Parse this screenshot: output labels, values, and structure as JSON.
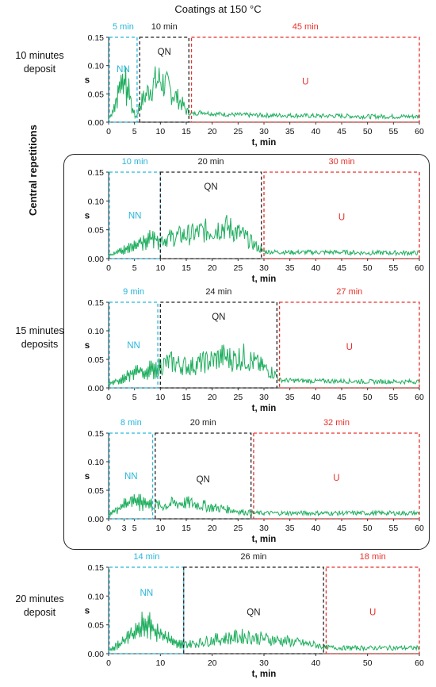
{
  "title": "Coatings at 150 °C",
  "side_labels": {
    "ten_min": [
      "10 minutes",
      "deposit"
    ],
    "central": "Central repetitions",
    "fifteen_min": [
      "15 minutes",
      "deposits"
    ],
    "twenty_min": [
      "20 minutes",
      "deposit"
    ]
  },
  "colors": {
    "NN": "#29b6d9",
    "QN": "#222222",
    "U": "#e8302a",
    "signal": "#1fae5e"
  },
  "chart_data": [
    {
      "type": "line",
      "xlabel": "t, min",
      "ylabel": "s",
      "xlim": [
        0,
        60
      ],
      "ylim": [
        0,
        0.15
      ],
      "xticks": [
        0,
        5,
        10,
        15,
        20,
        25,
        30,
        35,
        40,
        45,
        50,
        55,
        60
      ],
      "yticks": [
        "0.00",
        "0.05",
        "0.10",
        "0.15"
      ],
      "regions": [
        {
          "label": "NN",
          "duration": "5 min",
          "start": 0,
          "end": 5.5
        },
        {
          "label": "QN",
          "duration": "10 min",
          "start": 6,
          "end": 15.5
        },
        {
          "label": "U",
          "duration": "45 min",
          "start": 16,
          "end": 60
        }
      ],
      "series": [
        {
          "x": [
            0,
            1,
            2,
            3,
            3.8,
            4.5,
            5.2,
            6,
            7,
            8,
            9,
            10,
            11,
            12,
            13,
            14,
            15,
            16,
            18,
            20,
            25,
            30,
            35,
            40,
            45,
            50,
            55,
            60
          ],
          "y": [
            0.005,
            0.02,
            0.055,
            0.07,
            0.055,
            0.025,
            0.008,
            0.03,
            0.045,
            0.06,
            0.07,
            0.075,
            0.065,
            0.055,
            0.045,
            0.035,
            0.02,
            0.014,
            0.018,
            0.015,
            0.013,
            0.012,
            0.012,
            0.011,
            0.011,
            0.01,
            0.01,
            0.01
          ]
        }
      ]
    },
    {
      "type": "line",
      "xlabel": "t, min",
      "ylabel": "s",
      "xlim": [
        0,
        60
      ],
      "ylim": [
        0,
        0.15
      ],
      "xticks": [
        0,
        5,
        10,
        15,
        20,
        25,
        30,
        35,
        40,
        45,
        50,
        55,
        60
      ],
      "yticks": [
        "0.00",
        "0.05",
        "0.10",
        "0.15"
      ],
      "regions": [
        {
          "label": "NN",
          "duration": "10 min",
          "start": 0,
          "end": 10
        },
        {
          "label": "QN",
          "duration": "20 min",
          "start": 10,
          "end": 29.5
        },
        {
          "label": "U",
          "duration": "30 min",
          "start": 30,
          "end": 60
        }
      ],
      "series": [
        {
          "x": [
            0,
            2,
            4,
            6,
            8,
            10,
            12,
            14,
            16,
            18,
            20,
            22,
            24,
            26,
            28,
            29.5,
            30,
            35,
            40,
            45,
            50,
            55,
            60
          ],
          "y": [
            0.005,
            0.012,
            0.02,
            0.028,
            0.034,
            0.034,
            0.036,
            0.04,
            0.042,
            0.047,
            0.05,
            0.056,
            0.05,
            0.04,
            0.025,
            0.015,
            0.012,
            0.011,
            0.011,
            0.011,
            0.01,
            0.01,
            0.01
          ]
        }
      ]
    },
    {
      "type": "line",
      "xlabel": "t, min",
      "ylabel": "s",
      "xlim": [
        0,
        60
      ],
      "ylim": [
        0,
        0.15
      ],
      "xticks": [
        0,
        5,
        10,
        15,
        20,
        25,
        30,
        35,
        40,
        45,
        50,
        55,
        60
      ],
      "yticks": [
        "0.00",
        "0.05",
        "0.10",
        "0.15"
      ],
      "regions": [
        {
          "label": "NN",
          "duration": "9 min",
          "start": 0,
          "end": 9.5
        },
        {
          "label": "QN",
          "duration": "24 min",
          "start": 10,
          "end": 32.5
        },
        {
          "label": "U",
          "duration": "27 min",
          "start": 33,
          "end": 60
        }
      ],
      "series": [
        {
          "x": [
            0,
            2,
            4,
            6,
            8,
            9.5,
            10,
            12,
            14,
            16,
            18,
            20,
            22,
            24,
            26,
            28,
            30,
            32,
            33,
            35,
            40,
            45,
            50,
            55,
            60
          ],
          "y": [
            0.008,
            0.012,
            0.022,
            0.028,
            0.032,
            0.035,
            0.04,
            0.045,
            0.04,
            0.038,
            0.044,
            0.048,
            0.055,
            0.05,
            0.055,
            0.045,
            0.035,
            0.025,
            0.014,
            0.013,
            0.012,
            0.012,
            0.011,
            0.011,
            0.011
          ]
        }
      ]
    },
    {
      "type": "line",
      "xlabel": "t, min",
      "ylabel": "s",
      "xlim": [
        0,
        60
      ],
      "ylim": [
        0,
        0.15
      ],
      "xticks": [
        0,
        3,
        5,
        10,
        15,
        20,
        25,
        30,
        35,
        40,
        45,
        50,
        55,
        60
      ],
      "yticks": [
        "0.00",
        "0.05",
        "0.10",
        "0.15"
      ],
      "regions": [
        {
          "label": "NN",
          "duration": "8 min",
          "start": 0,
          "end": 8.5
        },
        {
          "label": "QN",
          "duration": "20 min",
          "start": 9,
          "end": 27.5
        },
        {
          "label": "U",
          "duration": "32 min",
          "start": 28,
          "end": 60
        }
      ],
      "series": [
        {
          "x": [
            0,
            1,
            2,
            3,
            4,
            5,
            6,
            7,
            8,
            9,
            10,
            12,
            14,
            16,
            18,
            20,
            22,
            24,
            26,
            28,
            30,
            35,
            40,
            45,
            50,
            55,
            60
          ],
          "y": [
            0.005,
            0.012,
            0.018,
            0.024,
            0.028,
            0.03,
            0.03,
            0.03,
            0.028,
            0.025,
            0.022,
            0.026,
            0.028,
            0.027,
            0.024,
            0.02,
            0.018,
            0.015,
            0.012,
            0.01,
            0.01,
            0.01,
            0.01,
            0.01,
            0.01,
            0.01,
            0.01
          ]
        }
      ]
    },
    {
      "type": "line",
      "xlabel": "t, min",
      "ylabel": "s",
      "xlim": [
        0,
        60
      ],
      "ylim": [
        0,
        0.15
      ],
      "xticks": [
        0,
        10,
        20,
        30,
        40,
        50,
        60
      ],
      "yticks": [
        "0.00",
        "0.05",
        "0.10",
        "0.15"
      ],
      "regions": [
        {
          "label": "NN",
          "duration": "14 min",
          "start": 0,
          "end": 14.5
        },
        {
          "label": "QN",
          "duration": "26 min",
          "start": 14.5,
          "end": 41.5
        },
        {
          "label": "U",
          "duration": "18 min",
          "start": 42,
          "end": 60
        }
      ],
      "series": [
        {
          "x": [
            0,
            1,
            2,
            3,
            4,
            5,
            6,
            7,
            8,
            9,
            10,
            11,
            12,
            13,
            14,
            16,
            18,
            20,
            22,
            24,
            26,
            28,
            30,
            32,
            34,
            36,
            38,
            40,
            41.5,
            42,
            45,
            50,
            55,
            60
          ],
          "y": [
            0.005,
            0.01,
            0.016,
            0.022,
            0.03,
            0.038,
            0.045,
            0.05,
            0.047,
            0.04,
            0.035,
            0.028,
            0.022,
            0.018,
            0.016,
            0.017,
            0.02,
            0.024,
            0.026,
            0.028,
            0.03,
            0.028,
            0.026,
            0.024,
            0.022,
            0.02,
            0.017,
            0.015,
            0.012,
            0.011,
            0.01,
            0.01,
            0.01,
            0.01
          ]
        }
      ]
    }
  ]
}
